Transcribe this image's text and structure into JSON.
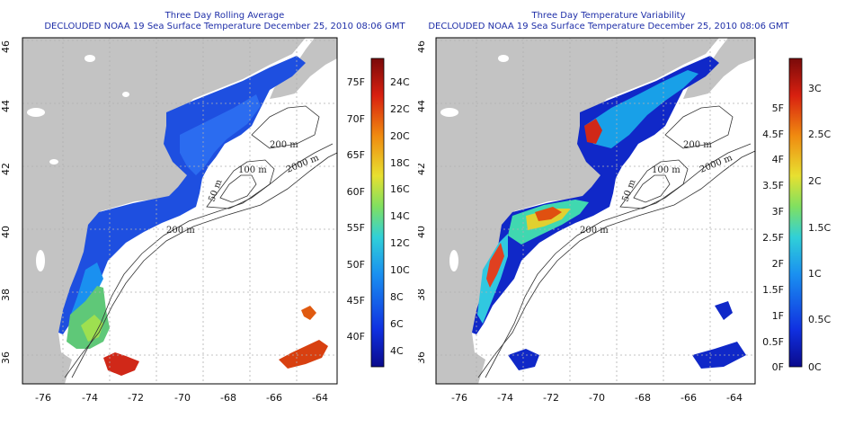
{
  "panels": [
    {
      "title_line1": "Three Day Rolling Average",
      "title_line2": "DECLOUDED NOAA 19 Sea Surface Temperature December 25, 2010 08:06 GMT",
      "colorbar_left": [
        "75F",
        "70F",
        "65F",
        "60F",
        "55F",
        "50F",
        "45F",
        "40F"
      ],
      "colorbar_right": [
        "24C",
        "22C",
        "20C",
        "18C",
        "16C",
        "14C",
        "12C",
        "10C",
        "8C",
        "6C",
        "4C"
      ]
    },
    {
      "title_line1": "Three Day Temperature Variability",
      "title_line2": "DECLOUDED NOAA 19 Sea Surface Temperature December 25, 2010 08:06 GMT",
      "colorbar_left": [
        "5F",
        "4.5F",
        "4F",
        "3.5F",
        "3F",
        "2.5F",
        "2F",
        "1.5F",
        "1F",
        "0.5F",
        "0F"
      ],
      "colorbar_right": [
        "3C",
        "2.5C",
        "2C",
        "1.5C",
        "1C",
        "0.5C",
        "0C"
      ]
    }
  ],
  "axes": {
    "x_ticks": [
      "-76",
      "-74",
      "-72",
      "-70",
      "-68",
      "-66",
      "-64"
    ],
    "y_ticks": [
      "46",
      "44",
      "42",
      "40",
      "38",
      "36"
    ]
  },
  "isobaths": [
    "2000 m",
    "200 m",
    "100 m",
    "50 m",
    "200 m"
  ],
  "colors": {
    "land": "#c3c3c3",
    "title": "#1f2fa8",
    "grid": "#b0b0b0"
  }
}
